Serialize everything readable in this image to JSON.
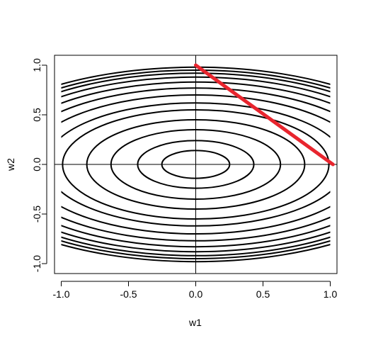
{
  "chart_data": {
    "type": "contour",
    "xlabel": "w1",
    "ylabel": "w2",
    "xlim": [
      -1.05,
      1.05
    ],
    "ylim": [
      -1.1,
      1.1
    ],
    "xticks": [
      -1.0,
      -0.5,
      0.0,
      0.5,
      1.0
    ],
    "xtick_labels": [
      "-1.0",
      "-0.5",
      "0.0",
      "0.5",
      "1.0"
    ],
    "yticks": [
      -1.0,
      -0.5,
      0.0,
      0.5,
      1.0
    ],
    "ytick_labels": [
      "-1.0",
      "-0.5",
      "0.0",
      "0.5",
      "1.0"
    ],
    "contour_function": {
      "form": "ellipse_level_sets",
      "x_semi_axis_per_level": 1.8,
      "y_semi_axis_per_level": 1.0
    },
    "contour_levels": [
      0.14,
      0.24,
      0.35,
      0.45,
      0.55,
      0.62,
      0.7,
      0.77,
      0.83,
      0.88,
      0.92,
      0.95,
      0.98
    ],
    "contour_domain": {
      "x": [
        -1.0,
        1.0
      ],
      "y": [
        -1.0,
        1.0
      ]
    },
    "contour_color": "#000000",
    "reference_lines": [
      {
        "orientation": "horizontal",
        "value": 0.0
      },
      {
        "orientation": "vertical",
        "value": 0.0
      }
    ],
    "series": [
      {
        "type": "line",
        "color": "#e8252e",
        "x": [
          0.0,
          1.02
        ],
        "y": [
          1.0,
          0.0
        ]
      }
    ],
    "grid": false
  }
}
